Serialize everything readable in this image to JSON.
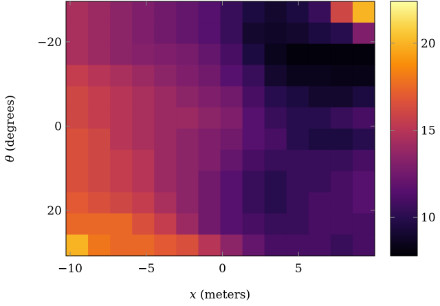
{
  "chart_data": {
    "type": "heatmap",
    "xlabel": "x (meters)",
    "ylabel": "θ (degrees)",
    "xlim": [
      -10.27,
      10
    ],
    "ylim": [
      -30.8,
      29.6
    ],
    "xticks": [
      -10,
      -5,
      0,
      5
    ],
    "yticks": [
      -20,
      0,
      20
    ],
    "colorbar": {
      "range": [
        7.8,
        22.4
      ],
      "ticks": [
        10,
        15,
        20
      ],
      "colormap": "inferno"
    },
    "x_centers": [
      -9.55,
      -8.12,
      -6.69,
      -5.26,
      -3.83,
      -2.4,
      -0.97,
      0.46,
      1.89,
      3.32,
      4.75,
      6.18,
      7.61,
      9.04
    ],
    "y_centers": [
      27.1,
      22.1,
      17.1,
      12.1,
      7.1,
      2.1,
      -2.9,
      -7.9,
      -12.9,
      -17.9,
      -22.9,
      -27.9
    ],
    "values": [
      [
        14.5,
        14,
        13.5,
        13,
        12.5,
        12,
        11.5,
        10.5,
        9.5,
        9,
        9.5,
        10.5,
        16,
        20
      ],
      [
        14.5,
        14,
        13.5,
        13,
        12.5,
        12,
        11.5,
        10.5,
        9,
        8.8,
        9,
        9.5,
        10,
        13
      ],
      [
        14.5,
        14,
        13.5,
        13.2,
        13,
        12.7,
        12,
        11,
        9.5,
        8.5,
        8,
        8,
        8,
        8
      ],
      [
        15.5,
        15,
        14.5,
        14,
        13.5,
        13,
        12.5,
        11.5,
        10.5,
        9,
        8.5,
        8.5,
        8.3,
        8.3
      ],
      [
        16,
        15.5,
        15,
        14.5,
        14,
        13.5,
        13,
        12.5,
        11,
        10,
        9.5,
        9,
        9,
        9.5
      ],
      [
        16,
        15.5,
        15,
        14.5,
        14,
        14,
        13.5,
        13,
        11.5,
        10.5,
        10,
        10,
        10.5,
        11
      ],
      [
        16.5,
        16,
        15,
        14.5,
        14,
        13.5,
        13,
        12.5,
        11.5,
        11,
        10,
        9.5,
        9.5,
        10
      ],
      [
        16.5,
        16,
        15.5,
        15,
        14,
        13.5,
        13,
        12,
        11,
        10.5,
        10.5,
        10.5,
        10.5,
        11
      ],
      [
        16.5,
        16,
        15.5,
        15,
        14,
        13.5,
        12.5,
        11.5,
        10.5,
        10,
        10.5,
        10.5,
        11,
        11.5
      ],
      [
        17,
        16.5,
        16,
        15.5,
        14.5,
        13.5,
        12.5,
        11.5,
        10.5,
        10,
        10.5,
        11,
        11,
        11.5
      ],
      [
        17.5,
        17.5,
        17.5,
        16.5,
        15.5,
        14,
        12.5,
        11.5,
        11,
        10.5,
        10.5,
        11,
        11,
        11
      ],
      [
        20,
        18,
        17.5,
        17.5,
        17,
        16.5,
        15,
        13.5,
        12,
        11,
        11,
        11,
        10.5,
        11
      ]
    ],
    "labels": {
      "x": "x",
      "x_unit": "(meters)",
      "y": "θ",
      "y_unit": "(degrees)"
    },
    "tick_labels": {
      "x": [
        "−10",
        "−5",
        "0",
        "5"
      ],
      "y": [
        "20",
        "0",
        "−20"
      ],
      "colorbar": [
        "20",
        "15",
        "10"
      ]
    }
  }
}
